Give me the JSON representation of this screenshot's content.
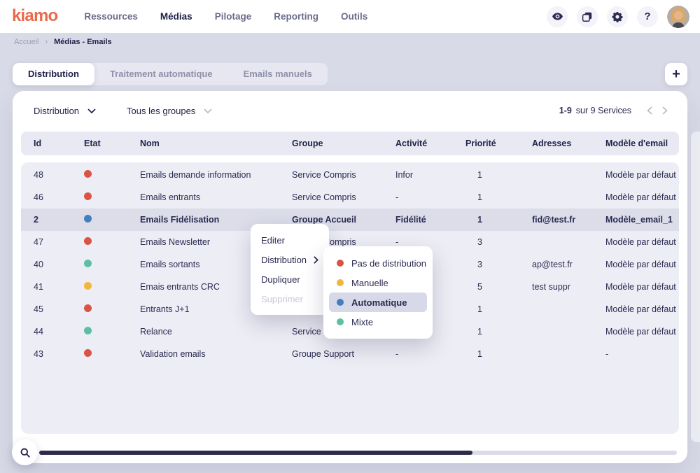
{
  "brand": {
    "name": "kiamo",
    "color": "#EA6A4B"
  },
  "nav": {
    "items": [
      {
        "label": "Ressources",
        "active": false
      },
      {
        "label": "Médias",
        "active": true
      },
      {
        "label": "Pilotage",
        "active": false
      },
      {
        "label": "Reporting",
        "active": false
      },
      {
        "label": "Outils",
        "active": false
      }
    ],
    "icons": [
      "eye-icon",
      "windows-icon",
      "settings-icon",
      "help-icon",
      "user-avatar"
    ]
  },
  "breadcrumb": {
    "home": "Accueil",
    "current": "Médias - Emails"
  },
  "tabs": {
    "items": [
      {
        "label": "Distribution",
        "active": true
      },
      {
        "label": "Traitement automatique",
        "active": false
      },
      {
        "label": "Emails manuels",
        "active": false
      }
    ],
    "add_button": "+"
  },
  "toolbar": {
    "filters": [
      {
        "label": "Distribution"
      },
      {
        "label": "Tous les groupes"
      }
    ],
    "pagination": {
      "range": "1-9",
      "label": "sur 9 Services"
    }
  },
  "table": {
    "columns": [
      "Id",
      "Etat",
      "Nom",
      "Groupe",
      "Activité",
      "Priorité",
      "Adresses",
      "Modèle d'email"
    ],
    "rows": [
      {
        "id": "48",
        "etat_color": "#D95446",
        "nom": "Emails demande information",
        "groupe": "Service Compris",
        "activite": "Infor",
        "priorite": "1",
        "adresses": "",
        "modele": "Modèle par défaut",
        "selected": false
      },
      {
        "id": "46",
        "etat_color": "#D95446",
        "nom": "Emails entrants",
        "groupe": "Service Compris",
        "activite": "-",
        "priorite": "1",
        "adresses": "",
        "modele": "Modèle par défaut",
        "selected": false
      },
      {
        "id": "2",
        "etat_color": "#417FC2",
        "nom": "Emails Fidélisation",
        "groupe": "Groupe Accueil",
        "activite": "Fidélité",
        "priorite": "1",
        "adresses": "fid@test.fr",
        "modele": "Modèle_email_1",
        "selected": true
      },
      {
        "id": "47",
        "etat_color": "#D95446",
        "nom": "Emails Newsletter",
        "groupe": "Service Compris",
        "activite": "-",
        "priorite": "3",
        "adresses": "",
        "modele": "Modèle par défaut",
        "selected": false
      },
      {
        "id": "40",
        "etat_color": "#5CBFA4",
        "nom": "Emails sortants",
        "groupe": "",
        "activite": "",
        "priorite": "3",
        "adresses": "ap@test.fr",
        "modele": "Modèle par défaut",
        "selected": false
      },
      {
        "id": "41",
        "etat_color": "#F0B63E",
        "nom": "Emais entrants CRC",
        "groupe": "",
        "activite": "",
        "priorite": "5",
        "adresses": "test suppr",
        "modele": "Modèle par défaut",
        "selected": false
      },
      {
        "id": "45",
        "etat_color": "#D95446",
        "nom": "Entrants J+1",
        "groupe": "",
        "activite": "",
        "priorite": "1",
        "adresses": "",
        "modele": "Modèle par défaut",
        "selected": false
      },
      {
        "id": "44",
        "etat_color": "#5CBFA4",
        "nom": "Relance",
        "groupe": "Service Compris",
        "activite": "",
        "priorite": "1",
        "adresses": "",
        "modele": "Modèle par défaut",
        "selected": false
      },
      {
        "id": "43",
        "etat_color": "#D95446",
        "nom": "Validation emails",
        "groupe": "Groupe Support",
        "activite": "-",
        "priorite": "1",
        "adresses": "",
        "modele": "-",
        "selected": false
      }
    ]
  },
  "context_menu": {
    "items": [
      {
        "label": "Editer",
        "disabled": false,
        "has_submenu": false
      },
      {
        "label": "Distribution",
        "disabled": false,
        "has_submenu": true
      },
      {
        "label": "Dupliquer",
        "disabled": false,
        "has_submenu": false
      },
      {
        "label": "Supprimer",
        "disabled": true,
        "has_submenu": false
      }
    ]
  },
  "distribution_submenu": {
    "items": [
      {
        "label": "Pas de distribution",
        "color": "#D95446",
        "selected": false
      },
      {
        "label": "Manuelle",
        "color": "#F0B63E",
        "selected": false
      },
      {
        "label": "Automatique",
        "color": "#417FC2",
        "selected": true
      },
      {
        "label": "Mixte",
        "color": "#5CBFA4",
        "selected": false
      }
    ]
  },
  "colors": {
    "accent_orange": "#EA6A4B",
    "text_navy": "#23234A",
    "page_bg": "#D9DAE7",
    "table_header_bg": "#E9E9F3",
    "table_body_bg": "#EDEDF5",
    "selected_row_bg": "#DCDDE9",
    "scrollbar_thumb": "#2C2C4A"
  }
}
